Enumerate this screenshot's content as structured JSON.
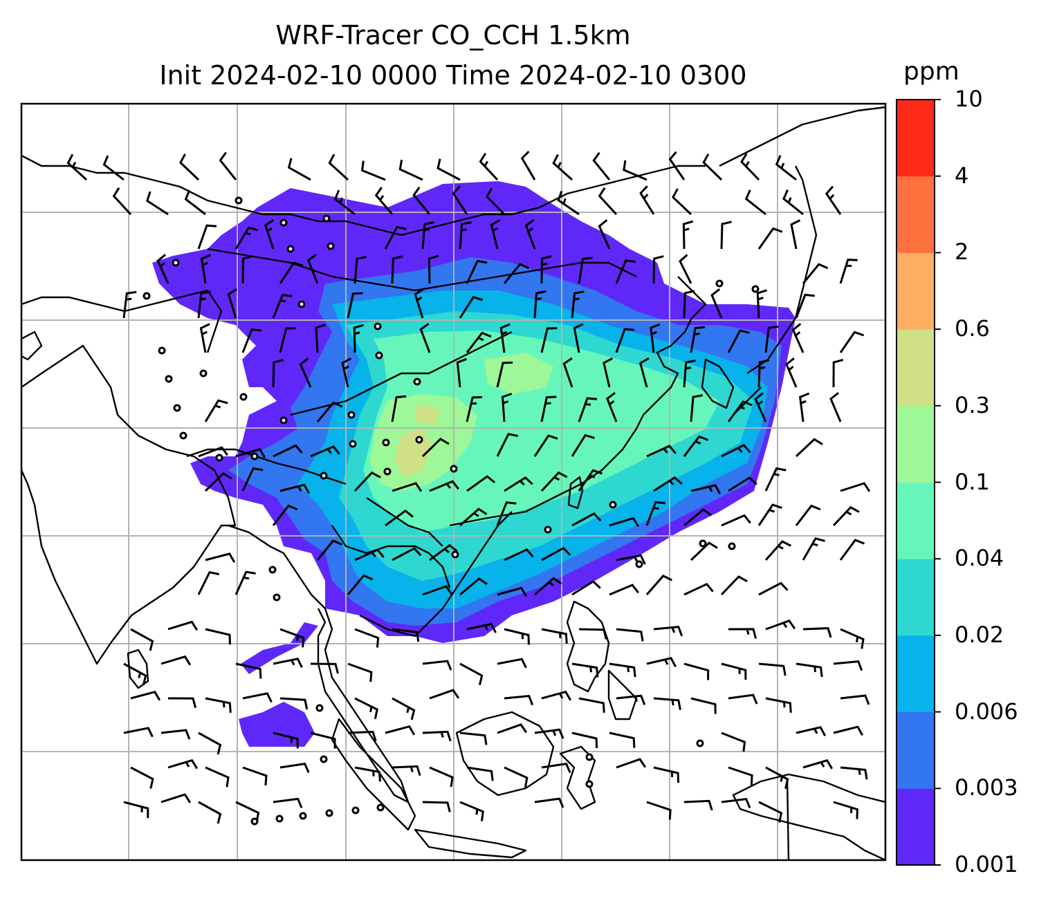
{
  "title": {
    "line1": "WRF-Tracer CO_CCH 1.5km",
    "line2": "Init 2024-02-10 0000 Time 2024-02-10 0300"
  },
  "colorbar": {
    "unit": "ppm",
    "levels": [
      "0.001",
      "0.003",
      "0.006",
      "0.02",
      "0.04",
      "0.1",
      "0.3",
      "0.6",
      "2",
      "4",
      "10"
    ],
    "colors": [
      "#6028f8",
      "#3276f0",
      "#08b2ea",
      "#2ed8d0",
      "#66f6bc",
      "#9ef898",
      "#cfe086",
      "#fdae60",
      "#ff7240",
      "#ff2a18"
    ]
  },
  "map": {
    "background": "#ffffff",
    "gridline_color": "#b3b3b3",
    "coastline_color": "#000000"
  }
}
